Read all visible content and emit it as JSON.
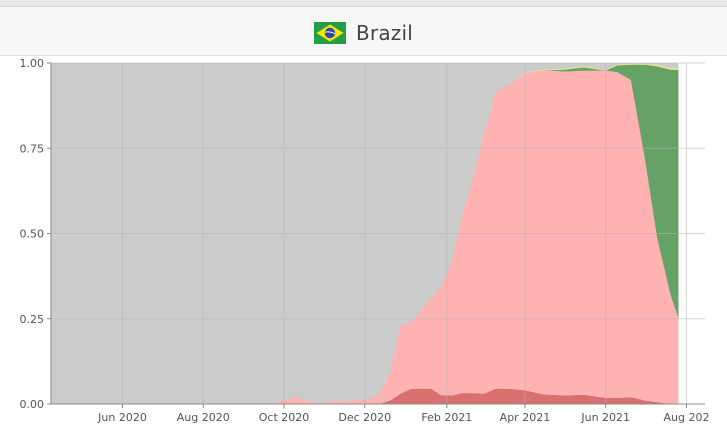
{
  "header": {
    "title": "Brazil",
    "flag_icon": "brazil-flag-icon",
    "flag_colors": {
      "green": "#229e45",
      "yellow": "#f8e509",
      "blue": "#2b49a3"
    }
  },
  "chart_data": {
    "type": "area",
    "stacked": true,
    "normalized": true,
    "title": "",
    "xlabel": "",
    "ylabel": "",
    "x_axis_type": "date",
    "xlim": [
      "2020-04-08",
      "2021-08-15"
    ],
    "ylim": [
      0,
      1
    ],
    "grid": true,
    "legend": "none",
    "background_color": "#cccccc",
    "x_ticks": [
      {
        "date": "2020-06-01",
        "label": "Jun 2020"
      },
      {
        "date": "2020-08-01",
        "label": "Aug 2020"
      },
      {
        "date": "2020-10-01",
        "label": "Oct 2020"
      },
      {
        "date": "2020-12-01",
        "label": "Dec 2020"
      },
      {
        "date": "2021-02-01",
        "label": "Feb 2021"
      },
      {
        "date": "2021-04-01",
        "label": "Apr 2021"
      },
      {
        "date": "2021-06-01",
        "label": "Jun 2021"
      },
      {
        "date": "2021-08-01",
        "label": "Aug 202"
      }
    ],
    "y_ticks": [
      {
        "value": 0,
        "label": "0.00"
      },
      {
        "value": 0.25,
        "label": "0.25"
      },
      {
        "value": 0.5,
        "label": "0.50"
      },
      {
        "value": 0.75,
        "label": "0.75"
      },
      {
        "value": 1,
        "label": "1.00"
      }
    ],
    "x": [
      "2020-09-20",
      "2020-10-01",
      "2020-10-10",
      "2020-10-25",
      "2020-11-10",
      "2020-11-25",
      "2020-12-05",
      "2020-12-12",
      "2020-12-20",
      "2020-12-28",
      "2021-01-05",
      "2021-01-12",
      "2021-01-20",
      "2021-01-28",
      "2021-02-05",
      "2021-02-12",
      "2021-02-20",
      "2021-03-01",
      "2021-03-10",
      "2021-03-20",
      "2021-04-01",
      "2021-04-15",
      "2021-05-01",
      "2021-05-15",
      "2021-06-01",
      "2021-06-10",
      "2021-06-20",
      "2021-07-01",
      "2021-07-10",
      "2021-07-20",
      "2021-07-26"
    ],
    "series": [
      {
        "color": "#d97070",
        "values": [
          0,
          0,
          0,
          0,
          0,
          0,
          0,
          0,
          0.01,
          0.03,
          0.045,
          0.045,
          0.045,
          0.025,
          0.025,
          0.032,
          0.032,
          0.03,
          0.045,
          0.045,
          0.04,
          0.028,
          0.025,
          0.027,
          0.018,
          0.018,
          0.02,
          0.01,
          0.005,
          0,
          0
        ]
      },
      {
        "color": "#ffb2b2",
        "values": [
          0,
          0.01,
          0.02,
          0.003,
          0.008,
          0.01,
          0.015,
          0.03,
          0.08,
          0.2,
          0.195,
          0.225,
          0.265,
          0.32,
          0.395,
          0.51,
          0.62,
          0.76,
          0.87,
          0.89,
          0.93,
          0.95,
          0.95,
          0.95,
          0.96,
          0.955,
          0.93,
          0.7,
          0.48,
          0.32,
          0.25
        ]
      },
      {
        "color": "#66a266",
        "values": [
          0,
          0,
          0,
          0,
          0,
          0,
          0,
          0,
          0,
          0,
          0,
          0,
          0,
          0,
          0,
          0,
          0,
          0,
          0,
          0,
          0,
          0,
          0.005,
          0.01,
          0,
          0.02,
          0.045,
          0.285,
          0.505,
          0.66,
          0.73
        ]
      },
      {
        "color": "#e9e09a",
        "values": [
          0,
          0,
          0,
          0,
          0,
          0,
          0,
          0,
          0,
          0,
          0,
          0,
          0,
          0,
          0,
          0,
          0,
          0,
          0,
          0,
          0.002,
          0.003,
          0.003,
          0.003,
          0.002,
          0.003,
          0.003,
          0.003,
          0.005,
          0.005,
          0.005
        ]
      }
    ]
  }
}
